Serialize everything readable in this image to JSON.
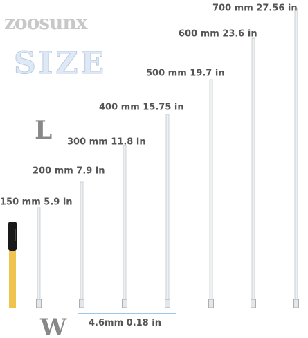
{
  "brand": "zoosunx",
  "heading": "SIZE",
  "length_label": "L",
  "width_label": "W",
  "width": "4.6mm  0.18 in",
  "items": [
    "150 mm 5.9 in",
    "200 mm 7.9 in",
    "300 mm 11.8 in",
    "400 mm 15.75 in",
    "500 mm 19.7 in",
    "600 mm 23.6 in",
    "700 mm 27.56 in"
  ]
}
